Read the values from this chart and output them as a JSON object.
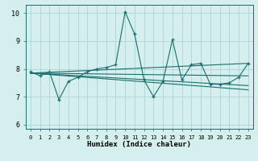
{
  "xlabel": "Humidex (Indice chaleur)",
  "ylabel": "",
  "xlim": [
    -0.5,
    23.5
  ],
  "ylim": [
    5.85,
    10.3
  ],
  "yticks": [
    6,
    7,
    8,
    9,
    10
  ],
  "xticks": [
    0,
    1,
    2,
    3,
    4,
    5,
    6,
    7,
    8,
    9,
    10,
    11,
    12,
    13,
    14,
    15,
    16,
    17,
    18,
    19,
    20,
    21,
    22,
    23
  ],
  "bg_color": "#d5eeee",
  "grid_color": "#aed4d4",
  "line_color": "#1a6e6e",
  "lines": [
    {
      "x": [
        0,
        1,
        2,
        3,
        4,
        5,
        6,
        7,
        8,
        9,
        10,
        11,
        12,
        13,
        14,
        15,
        16,
        17,
        18,
        19,
        20,
        21,
        22,
        23
      ],
      "y": [
        7.9,
        7.75,
        7.9,
        6.9,
        7.55,
        7.7,
        7.9,
        8.0,
        8.05,
        8.15,
        10.05,
        9.25,
        7.6,
        7.0,
        7.55,
        9.05,
        7.6,
        8.15,
        8.2,
        7.45,
        7.45,
        7.5,
        7.7,
        8.2
      ],
      "marker": "+"
    },
    {
      "x": [
        0,
        23
      ],
      "y": [
        7.85,
        7.75
      ],
      "marker": null
    },
    {
      "x": [
        0,
        23
      ],
      "y": [
        7.85,
        8.2
      ],
      "marker": null
    },
    {
      "x": [
        0,
        23
      ],
      "y": [
        7.85,
        7.25
      ],
      "marker": null
    },
    {
      "x": [
        0,
        23
      ],
      "y": [
        7.85,
        7.4
      ],
      "marker": null
    }
  ]
}
